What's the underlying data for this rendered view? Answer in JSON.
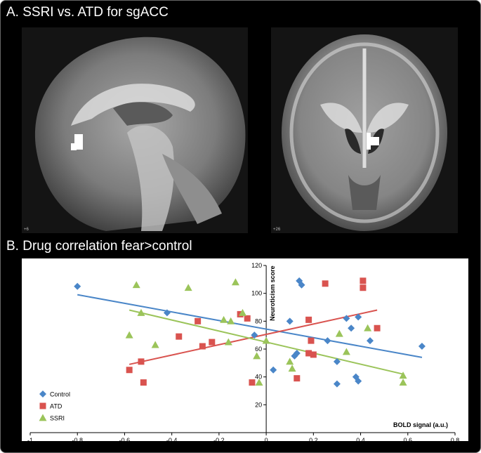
{
  "panels": {
    "a_title": "A. SSRI vs. ATD for sgACC",
    "b_title": "B. Drug correlation fear>control",
    "sagittal_label": "+6",
    "coronal_label": "+26"
  },
  "colors": {
    "Control": "#4a86c8",
    "ATD": "#d9534f",
    "SSRI": "#9bc45a"
  },
  "chart_data": {
    "type": "scatter",
    "xlabel": "BOLD signal (a.u.)",
    "ylabel": "Neuroticism score",
    "xlim": [
      -1,
      0.8
    ],
    "ylim": [
      0,
      120
    ],
    "xticks": [
      "-1",
      "-0,8",
      "-0,6",
      "-0,4",
      "-0,2",
      "0",
      "0,2",
      "0,4",
      "0,6",
      "0,8"
    ],
    "yticks": [
      "20",
      "40",
      "60",
      "80",
      "100",
      "120"
    ],
    "legend_position": "bottom-left",
    "series": [
      {
        "name": "Control",
        "marker": "diamond",
        "points": [
          [
            -0.8,
            105
          ],
          [
            -0.42,
            86
          ],
          [
            -0.05,
            70
          ],
          [
            0.03,
            45
          ],
          [
            0.1,
            80
          ],
          [
            0.13,
            57
          ],
          [
            0.12,
            55
          ],
          [
            0.14,
            109
          ],
          [
            0.15,
            106
          ],
          [
            0.26,
            66
          ],
          [
            0.3,
            51
          ],
          [
            0.3,
            35
          ],
          [
            0.34,
            82
          ],
          [
            0.36,
            75
          ],
          [
            0.38,
            40
          ],
          [
            0.39,
            37
          ],
          [
            0.39,
            83
          ],
          [
            0.44,
            66
          ],
          [
            0.66,
            62
          ]
        ],
        "trend": [
          [
            -0.8,
            99
          ],
          [
            0.66,
            54
          ]
        ]
      },
      {
        "name": "ATD",
        "marker": "square",
        "points": [
          [
            -0.58,
            45
          ],
          [
            -0.53,
            51
          ],
          [
            -0.52,
            36
          ],
          [
            -0.37,
            69
          ],
          [
            -0.29,
            80
          ],
          [
            -0.27,
            62
          ],
          [
            -0.23,
            65
          ],
          [
            -0.11,
            85
          ],
          [
            -0.08,
            82
          ],
          [
            -0.06,
            36
          ],
          [
            0.13,
            39
          ],
          [
            0.18,
            81
          ],
          [
            0.18,
            57
          ],
          [
            0.19,
            66
          ],
          [
            0.2,
            56
          ],
          [
            0.25,
            107
          ],
          [
            0.41,
            109
          ],
          [
            0.41,
            104
          ],
          [
            0.47,
            75
          ]
        ],
        "trend": [
          [
            -0.58,
            49
          ],
          [
            0.47,
            88
          ]
        ]
      },
      {
        "name": "SSRI",
        "marker": "triangle",
        "points": [
          [
            -0.58,
            70
          ],
          [
            -0.55,
            106
          ],
          [
            -0.53,
            86
          ],
          [
            -0.47,
            63
          ],
          [
            -0.33,
            104
          ],
          [
            -0.18,
            81
          ],
          [
            -0.16,
            65
          ],
          [
            -0.13,
            108
          ],
          [
            -0.15,
            80
          ],
          [
            -0.1,
            86
          ],
          [
            -0.04,
            55
          ],
          [
            -0.03,
            36
          ],
          [
            0.0,
            66
          ],
          [
            0.1,
            51
          ],
          [
            0.11,
            46
          ],
          [
            0.31,
            71
          ],
          [
            0.34,
            58
          ],
          [
            0.43,
            75
          ],
          [
            0.58,
            41
          ],
          [
            0.58,
            36
          ]
        ],
        "trend": [
          [
            -0.58,
            88
          ],
          [
            0.58,
            42
          ]
        ]
      }
    ]
  }
}
